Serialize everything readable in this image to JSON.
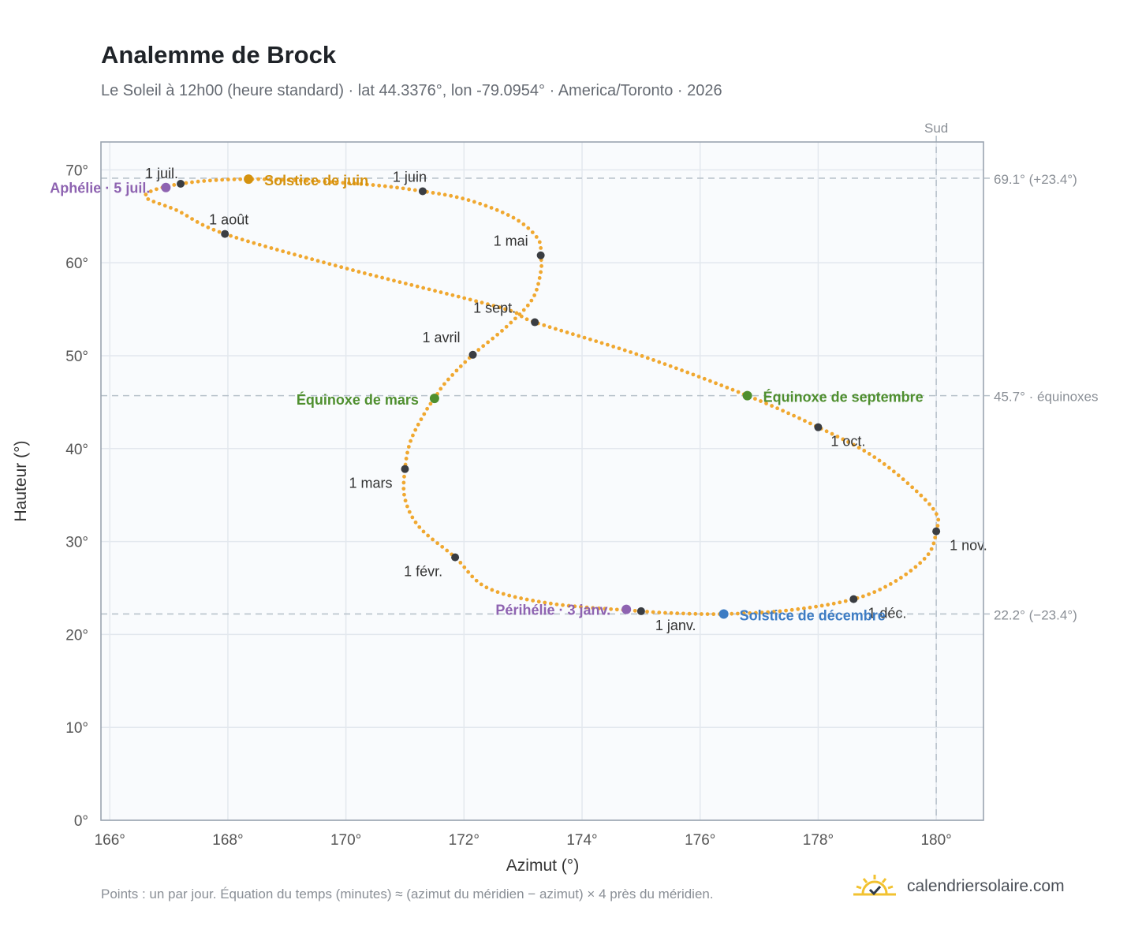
{
  "title": "Analemme de Brock",
  "subtitle": "Le Soleil à 12h00 (heure standard) · lat 44.3376°, lon -79.0954° · America/Toronto · 2026",
  "footnote": "Points : un par jour. Équation du temps (minutes) ≈ (azimut du méridien − azimut) × 4 près du méridien.",
  "brand": {
    "name": "calendriersolaire.com",
    "logo_icon": "sun-check-icon"
  },
  "colors": {
    "curve": "#f0a830",
    "month_marker": "#3a3d42",
    "solstice_june": "#d4920f",
    "solstice_december": "#3d7cc4",
    "equinox": "#4f8f2f",
    "apsis": "#8e63b1",
    "reference_line": "#b9c3cc",
    "plot_bg": "#f9fbfd",
    "grid": "#e3e8ee",
    "frame": "#9aa4b0"
  },
  "chart_data": {
    "type": "scatter",
    "xlabel": "Azimut (°)",
    "ylabel": "Hauteur (°)",
    "xlim": [
      165.85,
      180.8
    ],
    "ylim": [
      0,
      73
    ],
    "xticks": [
      166,
      168,
      170,
      172,
      174,
      176,
      178,
      180
    ],
    "yticks": [
      0,
      10,
      20,
      30,
      40,
      50,
      60,
      70
    ],
    "x_tick_labels": [
      "166°",
      "168°",
      "170°",
      "172°",
      "174°",
      "176°",
      "178°",
      "180°"
    ],
    "y_tick_labels": [
      "0°",
      "10°",
      "20°",
      "30°",
      "40°",
      "50°",
      "60°",
      "70°"
    ],
    "grid": true,
    "south_line": {
      "azimuth": 180,
      "label": "Sud"
    },
    "reference_lines": [
      {
        "altitude": 69.1,
        "label": "69.1° (+23.4°)"
      },
      {
        "altitude": 45.7,
        "label": "45.7° · équinoxes"
      },
      {
        "altitude": 22.2,
        "label": "22.2° (−23.4°)"
      }
    ],
    "daily_path": [
      [
        175.0,
        22.5
      ],
      [
        173.5,
        23.3
      ],
      [
        172.4,
        25.0
      ],
      [
        171.85,
        28.3
      ],
      [
        171.25,
        31.5
      ],
      [
        171.0,
        34.6
      ],
      [
        171.0,
        37.8
      ],
      [
        171.1,
        40.9
      ],
      [
        171.35,
        44.0
      ],
      [
        171.5,
        45.4
      ],
      [
        171.7,
        47.2
      ],
      [
        172.15,
        50.1
      ],
      [
        172.7,
        53.0
      ],
      [
        173.15,
        56.0
      ],
      [
        173.3,
        59.0
      ],
      [
        173.3,
        60.8
      ],
      [
        173.25,
        62.6
      ],
      [
        172.85,
        64.8
      ],
      [
        172.1,
        66.7
      ],
      [
        171.3,
        67.7
      ],
      [
        170.2,
        68.5
      ],
      [
        168.4,
        69.0
      ],
      [
        167.2,
        68.5
      ],
      [
        166.6,
        67.2
      ],
      [
        167.15,
        65.6
      ],
      [
        167.95,
        63.1
      ],
      [
        170.0,
        59.4
      ],
      [
        172.6,
        55.2
      ],
      [
        173.2,
        53.6
      ],
      [
        175.0,
        50.0
      ],
      [
        176.8,
        45.7
      ],
      [
        178.0,
        42.3
      ],
      [
        178.9,
        39.3
      ],
      [
        179.6,
        35.8
      ],
      [
        180.0,
        33.0
      ],
      [
        180.0,
        31.1
      ],
      [
        179.85,
        28.5
      ],
      [
        179.3,
        25.7
      ],
      [
        178.6,
        23.8
      ],
      [
        177.5,
        22.6
      ],
      [
        176.4,
        22.2
      ],
      [
        175.5,
        22.3
      ],
      [
        175.0,
        22.5
      ]
    ],
    "month_markers": [
      {
        "label": "1 janv.",
        "x": 175.0,
        "y": 22.5
      },
      {
        "label": "1 févr.",
        "x": 171.85,
        "y": 28.3
      },
      {
        "label": "1 mars",
        "x": 171.0,
        "y": 37.8
      },
      {
        "label": "1 avril",
        "x": 172.15,
        "y": 50.1
      },
      {
        "label": "1 mai",
        "x": 173.3,
        "y": 60.8
      },
      {
        "label": "1 juin",
        "x": 171.3,
        "y": 67.7
      },
      {
        "label": "1 juil.",
        "x": 167.2,
        "y": 68.5
      },
      {
        "label": "1 août",
        "x": 167.95,
        "y": 63.1
      },
      {
        "label": "1 sept.",
        "x": 173.2,
        "y": 53.6
      },
      {
        "label": "1 oct.",
        "x": 178.0,
        "y": 42.3
      },
      {
        "label": "1 nov.",
        "x": 180.0,
        "y": 31.1
      },
      {
        "label": "1 déc.",
        "x": 178.6,
        "y": 23.8
      }
    ],
    "events": [
      {
        "label": "Solstice de juin",
        "x": 168.35,
        "y": 69.0,
        "kind": "solstice_june"
      },
      {
        "label": "Aphélie · 5 juil.",
        "x": 166.95,
        "y": 68.1,
        "kind": "apsis"
      },
      {
        "label": "Équinoxe de mars",
        "x": 171.5,
        "y": 45.4,
        "kind": "equinox"
      },
      {
        "label": "Équinoxe de septembre",
        "x": 176.8,
        "y": 45.7,
        "kind": "equinox"
      },
      {
        "label": "Périhélie · 3 janv.",
        "x": 174.75,
        "y": 22.7,
        "kind": "apsis"
      },
      {
        "label": "Solstice de décembre",
        "x": 176.4,
        "y": 22.2,
        "kind": "solstice_december"
      }
    ]
  }
}
